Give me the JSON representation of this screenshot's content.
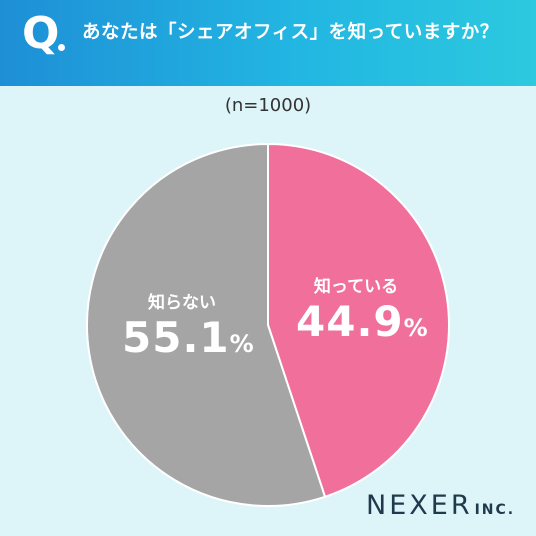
{
  "header": {
    "q_letter": "Q",
    "question": "あなたは「シェアオフィス」を知っていますか？"
  },
  "sample_size": "(n=1000)",
  "colors": {
    "background": "#ddf4f8",
    "header_start": "#1e8fd6",
    "header_end": "#2cc9df",
    "know": "#f0709b",
    "dont_know": "#a5a5a5"
  },
  "chart_data": {
    "type": "pie",
    "title": "あなたは「シェアオフィス」を知っていますか？",
    "start_angle_deg": 0,
    "direction": "clockwise",
    "slices": [
      {
        "label": "知っている",
        "value": 44.9,
        "display": "44.9",
        "unit": "%",
        "color": "#f0709b"
      },
      {
        "label": "知らない",
        "value": 55.1,
        "display": "55.1",
        "unit": "%",
        "color": "#a5a5a5"
      }
    ]
  },
  "brand": {
    "name": "NEXER",
    "suffix": "INC."
  }
}
